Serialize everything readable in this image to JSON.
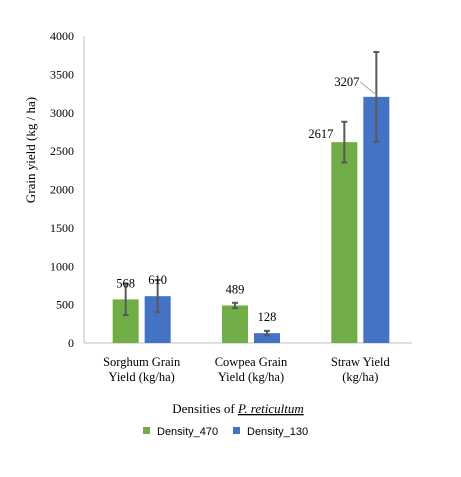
{
  "chart_data": {
    "type": "bar",
    "categories": [
      [
        "Sorghum Grain",
        "Yield (kg/ha)"
      ],
      [
        "Cowpea Grain",
        "Yield (kg/ha)"
      ],
      [
        "Straw Yield",
        "(kg/ha)"
      ]
    ],
    "series": [
      {
        "name": "Density_470",
        "color": "#70ad47",
        "values": [
          568,
          489,
          2617
        ],
        "errors": [
          205,
          35,
          265
        ]
      },
      {
        "name": "Density_130",
        "color": "#4472c4",
        "values": [
          610,
          128,
          3207
        ],
        "errors": [
          210,
          30,
          585
        ]
      }
    ],
    "data_labels": [
      "568",
      "610",
      "489",
      "128",
      "2617",
      "3207"
    ],
    "ylabel": "Grain yield (kg / ha)",
    "xlabel_prefix": "Densities of ",
    "xlabel_italic": "P. reticultum",
    "ylim": [
      0,
      4000
    ],
    "yticks": [
      0,
      500,
      1000,
      1500,
      2000,
      2500,
      3000,
      3500,
      4000
    ],
    "grid": false,
    "legend_position": "bottom"
  }
}
